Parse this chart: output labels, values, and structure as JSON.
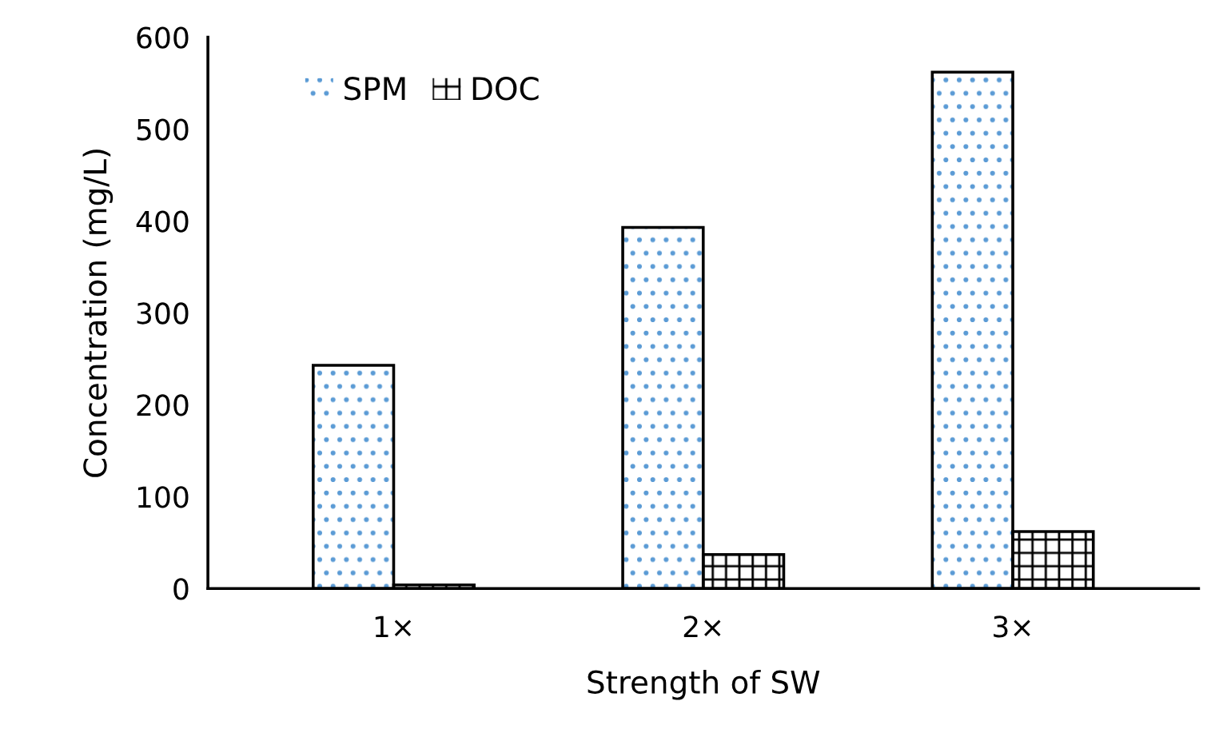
{
  "chart_data": {
    "type": "bar",
    "xlabel": "Strength of SW",
    "ylabel": "Concentration (mg/L)",
    "categories": [
      "1×",
      "2×",
      "3×"
    ],
    "series": [
      {
        "name": "SPM",
        "color": "#5b9bd5",
        "values": [
          243,
          393,
          562
        ]
      },
      {
        "name": "DOC",
        "color": "#000000",
        "values": [
          4,
          37,
          62
        ]
      }
    ],
    "ylim": [
      0,
      600
    ],
    "yticks": [
      0,
      100,
      200,
      300,
      400,
      500,
      600
    ],
    "grid": false,
    "legend": "top left"
  }
}
